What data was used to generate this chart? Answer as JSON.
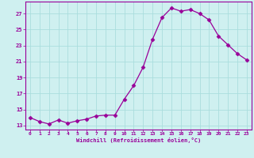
{
  "x": [
    0,
    1,
    2,
    3,
    4,
    5,
    6,
    7,
    8,
    9,
    10,
    11,
    12,
    13,
    14,
    15,
    16,
    17,
    18,
    19,
    20,
    21,
    22,
    23
  ],
  "y": [
    14.0,
    13.5,
    13.2,
    13.7,
    13.3,
    13.6,
    13.8,
    14.2,
    14.3,
    14.3,
    16.3,
    18.0,
    20.3,
    23.8,
    26.5,
    27.7,
    27.3,
    27.5,
    27.0,
    26.2,
    24.2,
    23.1,
    22.0,
    21.2
  ],
  "line_color": "#990099",
  "marker": "D",
  "marker_size": 2.5,
  "bg_color": "#cff0f0",
  "grid_color": "#aadddd",
  "tick_color": "#990099",
  "xlabel": "Windchill (Refroidissement éolien,°C)",
  "xlim": [
    -0.5,
    23.5
  ],
  "ylim": [
    12.5,
    28.5
  ],
  "yticks": [
    13,
    15,
    17,
    19,
    21,
    23,
    25,
    27
  ],
  "xticks": [
    0,
    1,
    2,
    3,
    4,
    5,
    6,
    7,
    8,
    9,
    10,
    11,
    12,
    13,
    14,
    15,
    16,
    17,
    18,
    19,
    20,
    21,
    22,
    23
  ]
}
